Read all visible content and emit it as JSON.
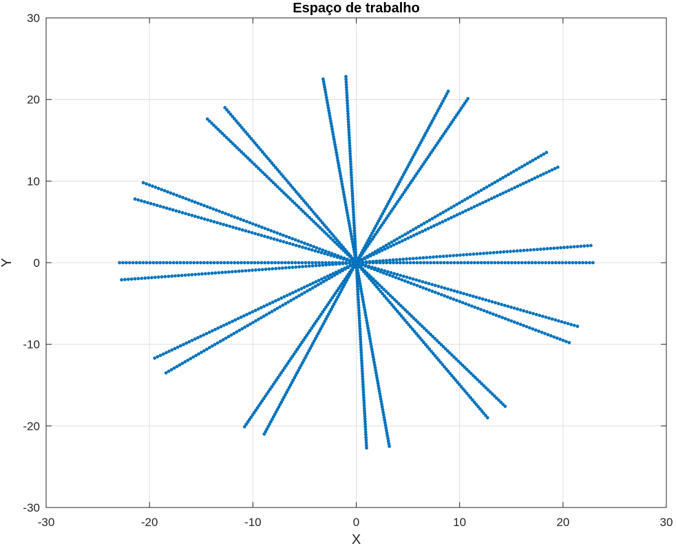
{
  "chart_data": {
    "type": "scatter",
    "title": "Espaço de trabalho",
    "xlabel": "X",
    "ylabel": "Y",
    "xlim": [
      -30,
      30
    ],
    "ylim": [
      -30,
      30
    ],
    "xticks": [
      -30,
      -20,
      -10,
      0,
      10,
      20,
      30
    ],
    "yticks": [
      -30,
      -20,
      -10,
      0,
      10,
      20,
      30
    ],
    "xtick_labels": [
      "-30",
      "-20",
      "-10",
      "0",
      "10",
      "20",
      "30"
    ],
    "ytick_labels": [
      "-30",
      "-20",
      "-10",
      "0",
      "10",
      "20",
      "30"
    ],
    "grid": true,
    "series_color": "#0072BD",
    "marker": "dot",
    "points_per_ray": 70,
    "series": [
      {
        "rays_endpoints": [
          [
            22.9,
            0.0
          ],
          [
            22.7,
            2.1
          ],
          [
            21.4,
            -7.8
          ],
          [
            20.6,
            -9.8
          ],
          [
            19.5,
            11.7
          ],
          [
            18.4,
            13.5
          ],
          [
            14.4,
            -17.6
          ],
          [
            12.7,
            -19.0
          ],
          [
            10.8,
            20.1
          ],
          [
            8.9,
            21.0
          ],
          [
            3.2,
            -22.5
          ],
          [
            1.0,
            -22.7
          ],
          [
            -1.0,
            22.8
          ],
          [
            -3.2,
            22.5
          ],
          [
            -8.9,
            -21.0
          ],
          [
            -10.8,
            -20.1
          ],
          [
            -12.7,
            19.0
          ],
          [
            -14.4,
            17.6
          ],
          [
            -18.4,
            -13.5
          ],
          [
            -19.5,
            -11.7
          ],
          [
            -20.6,
            9.8
          ],
          [
            -21.4,
            7.8
          ],
          [
            -22.7,
            -2.1
          ],
          [
            -22.9,
            0.0
          ]
        ]
      }
    ]
  }
}
